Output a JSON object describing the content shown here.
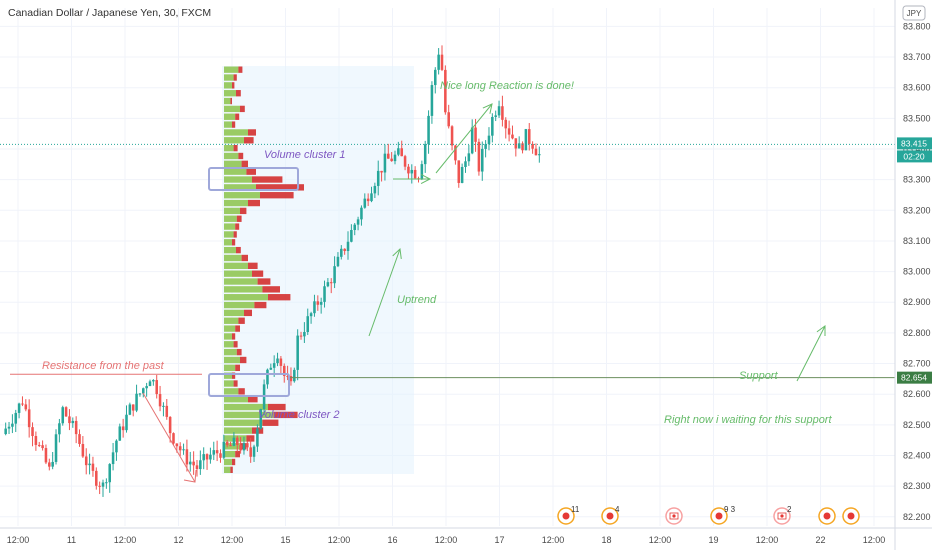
{
  "title": "Canadian Dollar / Japanese Yen, 30, FXCM",
  "currency_badge": "JPY",
  "colors": {
    "up": "#26a69a",
    "down": "#ef5350",
    "volume_up": "#8bc34a",
    "volume_down": "#d32f2f",
    "grid": "#f0f3fa",
    "text": "#4a4a4a",
    "box": "#9fa8da",
    "annotation_purple": "#7e57c2",
    "annotation_red": "#e57373",
    "annotation_green": "#66bb6a",
    "line_green": "#6b8f5e",
    "price_tag_current": "#26a69a",
    "price_tag_support": "#3b7d44"
  },
  "price_tags": {
    "current": "83.415",
    "countdown": "02:20",
    "support": "82.654"
  },
  "annotations": {
    "resistance": "Resistance from the past",
    "volume_cluster_1": "Volume cluster 1",
    "volume_cluster_2": "Volume cluster 2",
    "uptrend": "Uptrend",
    "reaction": "Nice long Reaction is done!",
    "support": "Support",
    "waiting": "Right now i waiting for this support"
  },
  "events": [
    {
      "icon": "economic-event-icon",
      "count": "11"
    },
    {
      "icon": "economic-event-icon",
      "count": "4"
    },
    {
      "icon": "canada-flag-icon",
      "count": ""
    },
    {
      "icon": "economic-event-icon",
      "count": "9 3"
    },
    {
      "icon": "canada-flag-icon",
      "count": "2"
    },
    {
      "icon": "economic-event-icon",
      "count": ""
    },
    {
      "icon": "economic-event-icon",
      "count": ""
    }
  ],
  "chart_data": {
    "type": "candlestick",
    "title": "Canadian Dollar / Japanese Yen, 30, FXCM",
    "y_axis": {
      "ticks": [
        "83.800",
        "83.700",
        "83.600",
        "83.500",
        "83.400",
        "83.300",
        "83.200",
        "83.100",
        "83.000",
        "82.900",
        "82.800",
        "82.700",
        "82.600",
        "82.500",
        "82.400",
        "82.300",
        "82.200"
      ],
      "range": [
        82.17,
        83.86
      ]
    },
    "x_axis": {
      "ticks": [
        "12:00",
        "11",
        "12:00",
        "12",
        "12:00",
        "15",
        "12:00",
        "16",
        "12:00",
        "17",
        "12:00",
        "18",
        "12:00",
        "19",
        "12:00",
        "22",
        "12:00"
      ]
    },
    "levels": {
      "resistance": 82.665,
      "support": 82.654,
      "last_price": 83.415
    },
    "volume_clusters": [
      "83.35",
      "82.66"
    ],
    "price_path": [
      [
        0,
        82.47
      ],
      [
        6,
        82.58
      ],
      [
        10,
        82.45
      ],
      [
        14,
        82.35
      ],
      [
        18,
        82.55
      ],
      [
        22,
        82.47
      ],
      [
        26,
        82.35
      ],
      [
        30,
        82.3
      ],
      [
        34,
        82.45
      ],
      [
        38,
        82.55
      ],
      [
        42,
        82.62
      ],
      [
        44,
        82.66
      ],
      [
        46,
        82.62
      ],
      [
        50,
        82.48
      ],
      [
        54,
        82.4
      ],
      [
        58,
        82.36
      ],
      [
        62,
        82.4
      ],
      [
        66,
        82.42
      ],
      [
        70,
        82.44
      ],
      [
        74,
        82.4
      ],
      [
        76,
        82.5
      ],
      [
        78,
        82.62
      ],
      [
        80,
        82.7
      ],
      [
        82,
        82.74
      ],
      [
        84,
        82.66
      ],
      [
        86,
        82.62
      ],
      [
        88,
        82.78
      ],
      [
        90,
        82.82
      ],
      [
        94,
        82.9
      ],
      [
        98,
        82.98
      ],
      [
        102,
        83.08
      ],
      [
        106,
        83.18
      ],
      [
        110,
        83.28
      ],
      [
        114,
        83.36
      ],
      [
        118,
        83.38
      ],
      [
        122,
        83.33
      ],
      [
        124,
        83.32
      ],
      [
        126,
        83.42
      ],
      [
        128,
        83.6
      ],
      [
        130,
        83.72
      ],
      [
        131,
        83.66
      ],
      [
        132,
        83.52
      ],
      [
        134,
        83.4
      ],
      [
        136,
        83.3
      ],
      [
        138,
        83.36
      ],
      [
        140,
        83.46
      ],
      [
        142,
        83.34
      ],
      [
        144,
        83.42
      ],
      [
        146,
        83.5
      ],
      [
        148,
        83.56
      ],
      [
        150,
        83.48
      ],
      [
        152,
        83.44
      ],
      [
        154,
        83.4
      ],
      [
        156,
        83.44
      ],
      [
        158,
        83.42
      ],
      [
        160,
        83.38
      ]
    ],
    "volume_profile_up": [
      0.18,
      0.12,
      0.1,
      0.15,
      0.08,
      0.2,
      0.14,
      0.1,
      0.3,
      0.25,
      0.12,
      0.18,
      0.22,
      0.28,
      0.35,
      0.4,
      0.45,
      0.3,
      0.2,
      0.16,
      0.14,
      0.12,
      0.1,
      0.15,
      0.22,
      0.3,
      0.35,
      0.42,
      0.48,
      0.55,
      0.38,
      0.25,
      0.18,
      0.14,
      0.1,
      0.12,
      0.16,
      0.2,
      0.14,
      0.1,
      0.12,
      0.18,
      0.3,
      0.55,
      0.62,
      0.48,
      0.35,
      0.28,
      0.2,
      0.14,
      0.1,
      0.08
    ],
    "volume_profile_down": [
      0.05,
      0.04,
      0.03,
      0.06,
      0.02,
      0.06,
      0.05,
      0.04,
      0.1,
      0.12,
      0.05,
      0.06,
      0.08,
      0.12,
      0.38,
      0.6,
      0.42,
      0.15,
      0.08,
      0.06,
      0.05,
      0.04,
      0.04,
      0.06,
      0.08,
      0.12,
      0.14,
      0.16,
      0.22,
      0.28,
      0.15,
      0.1,
      0.08,
      0.06,
      0.04,
      0.05,
      0.06,
      0.08,
      0.06,
      0.04,
      0.05,
      0.08,
      0.12,
      0.22,
      0.3,
      0.2,
      0.14,
      0.1,
      0.08,
      0.06,
      0.04,
      0.03
    ]
  }
}
